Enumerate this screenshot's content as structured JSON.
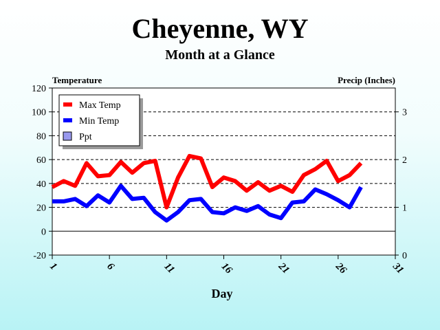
{
  "chart_data": {
    "type": "line",
    "title": "Cheyenne, WY",
    "subtitle": "Month at a Glance",
    "xlabel": "Day",
    "ylabel_left": "Temperature",
    "ylabel_right": "Precip (Inches)",
    "xlim": [
      1,
      31
    ],
    "ylim_left": [
      -20,
      120
    ],
    "ylim_right": [
      0,
      3.5
    ],
    "x_ticks": [
      1,
      6,
      11,
      16,
      21,
      26,
      31
    ],
    "y_ticks_left": [
      -20,
      0,
      20,
      40,
      60,
      80,
      100,
      120
    ],
    "y_ticks_right": [
      0,
      1,
      2,
      3
    ],
    "grid": "horizontal-dashed",
    "legend_position": "top-left",
    "legend": [
      {
        "label": "Max Temp",
        "color": "#ff0000",
        "kind": "line"
      },
      {
        "label": "Min Temp",
        "color": "#0000ff",
        "kind": "line"
      },
      {
        "label": "Ppt",
        "color": "#9999ee",
        "kind": "box"
      }
    ],
    "series": [
      {
        "name": "Max Temp",
        "color": "#ff0000",
        "x": [
          1,
          2,
          3,
          4,
          5,
          6,
          7,
          8,
          9,
          10,
          11,
          12,
          13,
          14,
          15,
          16,
          17,
          18,
          19,
          20,
          21,
          22,
          23,
          24,
          25,
          26,
          27,
          28
        ],
        "values": [
          37,
          42,
          38,
          57,
          46,
          47,
          58,
          49,
          57,
          59,
          20,
          45,
          63,
          61,
          37,
          45,
          42,
          34,
          41,
          34,
          38,
          33,
          47,
          52,
          59,
          42,
          47,
          57
        ]
      },
      {
        "name": "Min Temp",
        "color": "#0000ff",
        "x": [
          1,
          2,
          3,
          4,
          5,
          6,
          7,
          8,
          9,
          10,
          11,
          12,
          13,
          14,
          15,
          16,
          17,
          18,
          19,
          20,
          21,
          22,
          23,
          24,
          25,
          26,
          27,
          28
        ],
        "values": [
          25,
          25,
          27,
          21,
          30,
          24,
          38,
          27,
          28,
          16,
          9,
          16,
          26,
          27,
          16,
          15,
          20,
          17,
          21,
          14,
          11,
          24,
          25,
          35,
          31,
          26,
          20,
          37
        ]
      },
      {
        "name": "Ppt",
        "color": "#9999ee",
        "values": []
      }
    ]
  }
}
